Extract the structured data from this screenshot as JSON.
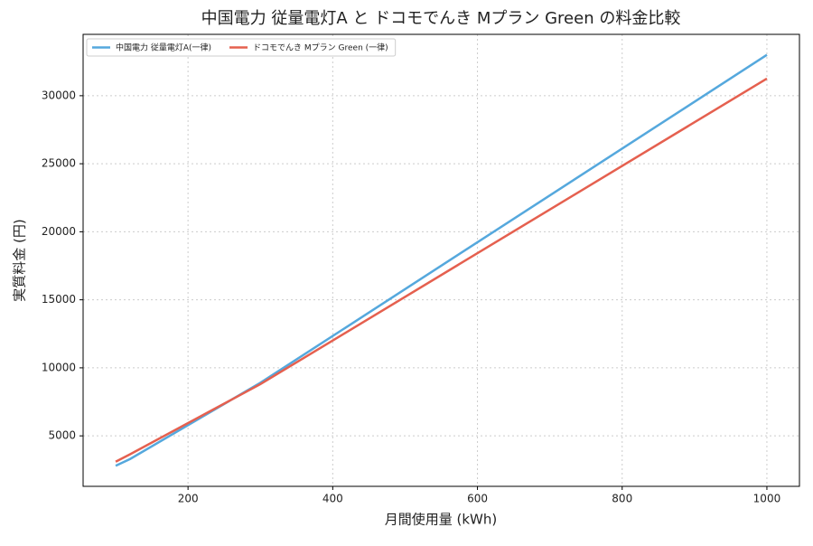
{
  "chart_data": {
    "type": "line",
    "title": "中国電力 従量電灯A と ドコモでんき Mプラン Green  の料金比較",
    "x_label": "月間使用量 (kWh)",
    "y_label": "実質料金 (円)",
    "x": [
      100,
      120,
      300,
      1000
    ],
    "series": [
      {
        "name": "中国電力 従量電灯A(一律)",
        "color": "#55a8dd",
        "values": [
          2800,
          3300,
          8900,
          33000
        ]
      },
      {
        "name": "ドコモでんき Mプラン Green (一律)",
        "color": "#e5604f",
        "values": [
          3100,
          3650,
          8800,
          31260
        ]
      }
    ],
    "xlim": [
      55,
      1045
    ],
    "ylim": [
      1290,
      34510
    ],
    "xticks": [
      200,
      400,
      600,
      800,
      1000
    ],
    "yticks": [
      5000,
      10000,
      15000,
      20000,
      25000,
      30000
    ],
    "grid": true,
    "legend": "upper-left"
  }
}
